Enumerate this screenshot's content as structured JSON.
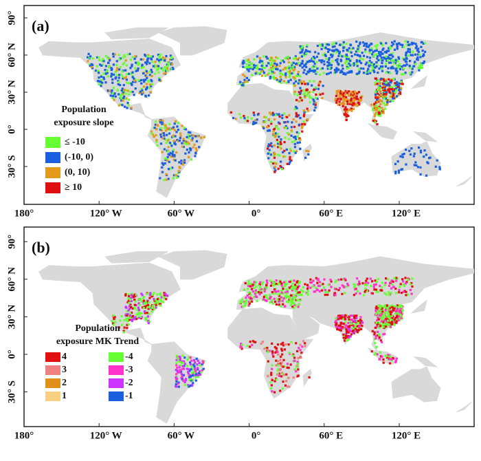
{
  "panels": [
    {
      "label": "(a)",
      "legend": {
        "title": [
          "Population",
          "exposure slope"
        ],
        "items": [
          {
            "label": "≤ -10",
            "color": "#66ff33"
          },
          {
            "label": "(-10, 0)",
            "color": "#1a5fe0"
          },
          {
            "label": "(0, 10)",
            "color": "#e39a1a"
          },
          {
            "label": "≥ 10",
            "color": "#e01010"
          }
        ]
      }
    },
    {
      "label": "(b)",
      "legend": {
        "title": [
          "Population",
          "exposure MK Trend"
        ],
        "items": [
          {
            "label": "4",
            "color": "#e01010"
          },
          {
            "label": "3",
            "color": "#f08080"
          },
          {
            "label": "2",
            "color": "#e3901a"
          },
          {
            "label": "1",
            "color": "#f8d080"
          },
          {
            "label": "-4",
            "color": "#66ff33"
          },
          {
            "label": "-3",
            "color": "#ff33cc"
          },
          {
            "label": "-2",
            "color": "#cc33ff"
          },
          {
            "label": "-1",
            "color": "#1a5fe0"
          }
        ]
      }
    }
  ],
  "x_ticks": [
    {
      "value": -180,
      "label": "180°"
    },
    {
      "value": -120,
      "label": "120° W"
    },
    {
      "value": -60,
      "label": "60° W"
    },
    {
      "value": 0,
      "label": "0°"
    },
    {
      "value": 60,
      "label": "60° E"
    },
    {
      "value": 120,
      "label": "120° E"
    }
  ],
  "y_ticks": [
    {
      "value": 90,
      "label": "90°"
    },
    {
      "value": 60,
      "label": "60° N"
    },
    {
      "value": 30,
      "label": "30° N"
    },
    {
      "value": 0,
      "label": "0°"
    },
    {
      "value": -30,
      "label": "30° S"
    }
  ]
}
